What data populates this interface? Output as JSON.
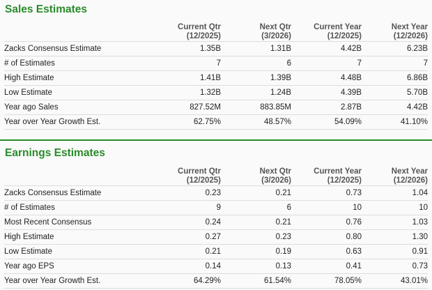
{
  "sales": {
    "title": "Sales Estimates",
    "columns": [
      {
        "label": "Current Qtr",
        "period": "(12/2025)"
      },
      {
        "label": "Next Qtr",
        "period": "(3/2026)"
      },
      {
        "label": "Current Year",
        "period": "(12/2025)"
      },
      {
        "label": "Next Year",
        "period": "(12/2026)"
      }
    ],
    "rows": [
      {
        "label": "Zacks Consensus Estimate",
        "values": [
          "1.35B",
          "1.31B",
          "4.42B",
          "6.23B"
        ]
      },
      {
        "label": "# of Estimates",
        "values": [
          "7",
          "6",
          "7",
          "7"
        ]
      },
      {
        "label": "High Estimate",
        "values": [
          "1.41B",
          "1.39B",
          "4.48B",
          "6.86B"
        ]
      },
      {
        "label": "Low Estimate",
        "values": [
          "1.32B",
          "1.24B",
          "4.39B",
          "5.70B"
        ]
      },
      {
        "label": "Year ago Sales",
        "values": [
          "827.52M",
          "883.85M",
          "2.87B",
          "4.42B"
        ]
      },
      {
        "label": "Year over Year Growth Est.",
        "values": [
          "62.75%",
          "48.57%",
          "54.09%",
          "41.10%"
        ]
      }
    ]
  },
  "earnings": {
    "title": "Earnings Estimates",
    "columns": [
      {
        "label": "Current Qtr",
        "period": "(12/2025)"
      },
      {
        "label": "Next Qtr",
        "period": "(3/2026)"
      },
      {
        "label": "Current Year",
        "period": "(12/2025)"
      },
      {
        "label": "Next Year",
        "period": "(12/2026)"
      }
    ],
    "rows": [
      {
        "label": "Zacks Consensus Estimate",
        "values": [
          "0.23",
          "0.21",
          "0.73",
          "1.04"
        ]
      },
      {
        "label": "# of Estimates",
        "values": [
          "9",
          "6",
          "10",
          "10"
        ]
      },
      {
        "label": "Most Recent Consensus",
        "values": [
          "0.24",
          "0.21",
          "0.76",
          "1.03"
        ]
      },
      {
        "label": "High Estimate",
        "values": [
          "0.27",
          "0.23",
          "0.80",
          "1.30"
        ]
      },
      {
        "label": "Low Estimate",
        "values": [
          "0.21",
          "0.19",
          "0.63",
          "0.91"
        ]
      },
      {
        "label": "Year ago EPS",
        "values": [
          "0.14",
          "0.13",
          "0.41",
          "0.73"
        ]
      },
      {
        "label": "Year over Year Growth Est.",
        "values": [
          "64.29%",
          "61.54%",
          "78.05%",
          "43.01%"
        ]
      }
    ]
  },
  "colors": {
    "accent": "#2a8c2a",
    "background": "#fafafa",
    "border": "#dddddd"
  }
}
